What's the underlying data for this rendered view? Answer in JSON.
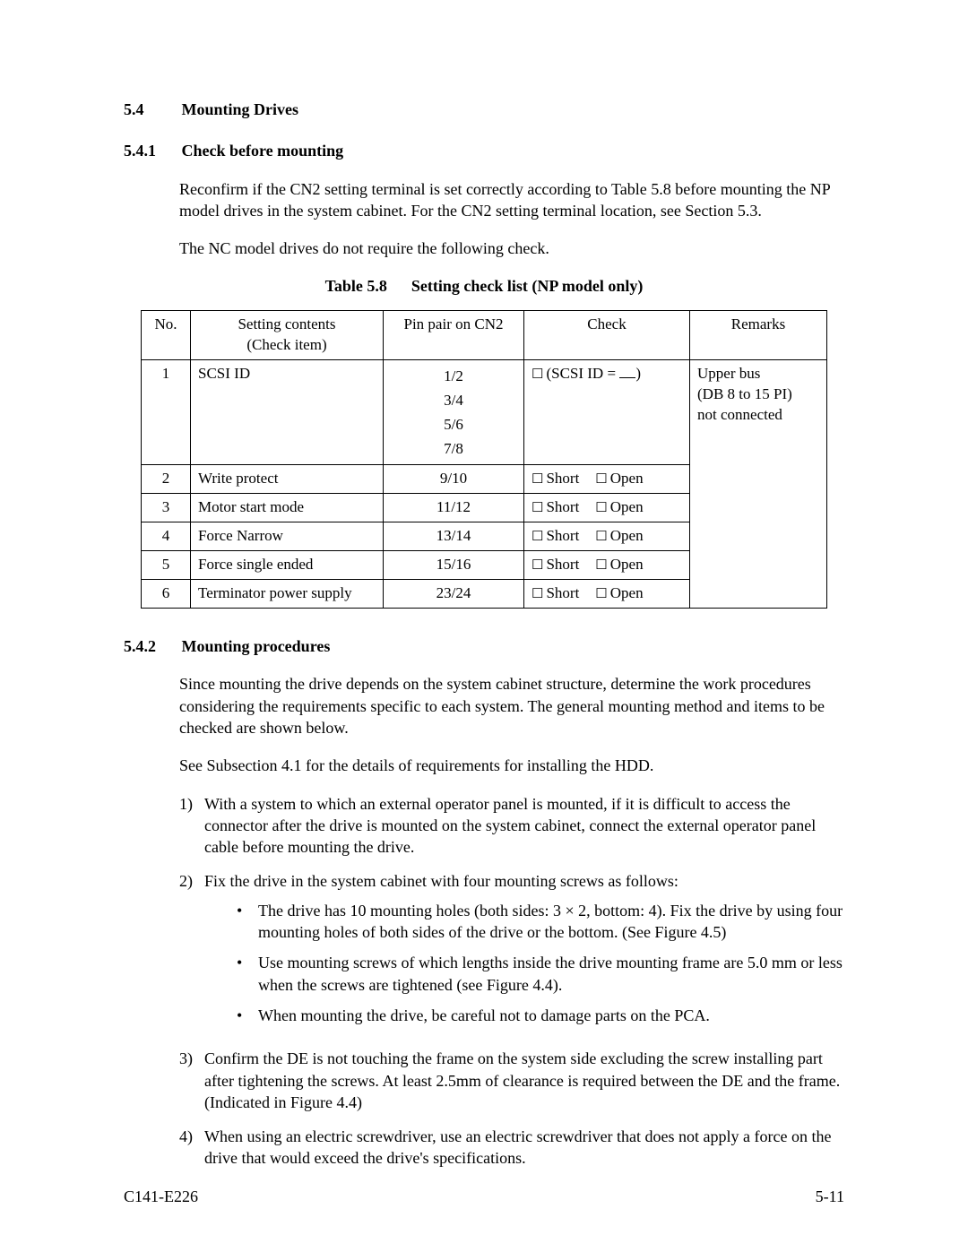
{
  "section": {
    "number": "5.4",
    "title": "Mounting Drives"
  },
  "sub1": {
    "number": "5.4.1",
    "title": "Check before mounting",
    "para1": "Reconfirm if the CN2 setting terminal is set correctly according to Table 5.8 before mounting the NP model drives in the system cabinet.  For the CN2 setting terminal location, see Section 5.3.",
    "para2": "The NC model drives do not require the following check."
  },
  "table": {
    "caption_label": "Table 5.8",
    "caption_title": "Setting check list (NP model only)",
    "headers": {
      "no": "No.",
      "item": "Setting contents\n(Check item)",
      "pin": "Pin pair on CN2",
      "check": "Check",
      "remarks": "Remarks"
    },
    "row1": {
      "no": "1",
      "item": "SCSI ID",
      "pins": [
        "1/2",
        "3/4",
        "5/6",
        "7/8"
      ],
      "check_prefix": "(SCSI ID =",
      "check_suffix": ")",
      "remarks": "Upper bus\n(DB 8 to 15 PI)\nnot connected"
    },
    "rows_simple": [
      {
        "no": "2",
        "item": "Write protect",
        "pin": "9/10"
      },
      {
        "no": "3",
        "item": "Motor start mode",
        "pin": "11/12"
      },
      {
        "no": "4",
        "item": "Force Narrow",
        "pin": "13/14"
      },
      {
        "no": "5",
        "item": "Force single ended",
        "pin": "15/16"
      },
      {
        "no": "6",
        "item": "Terminator power supply",
        "pin": "23/24"
      }
    ],
    "check_labels": {
      "short": "Short",
      "open": "Open"
    }
  },
  "sub2": {
    "number": "5.4.2",
    "title": "Mounting procedures",
    "para1": "Since mounting the drive depends on the system cabinet structure, determine the work procedures considering the requirements specific to each system.  The general mounting method and items to be checked are shown below.",
    "para2": "See Subsection 4.1 for the details of requirements for installing the HDD.",
    "items": {
      "i1": "With a system to which an external operator panel is mounted, if it is difficult to access the connector after the drive is mounted on the system cabinet, connect the external operator panel cable before mounting the drive.",
      "i2": "Fix the drive in the system cabinet with four mounting screws as follows:",
      "i2_bullets": [
        "The drive has 10 mounting holes (both sides:  3 × 2, bottom:  4).  Fix the drive by using four mounting holes of both sides of the drive or the bottom. (See Figure 4.5)",
        "Use mounting screws of which lengths inside the drive mounting frame are 5.0 mm or less when the screws are tightened (see Figure 4.4).",
        "When mounting the drive, be careful not to damage parts on the PCA."
      ],
      "i3": "Confirm the DE is not touching the frame on the system side excluding the screw installing part after tightening the screws. At least 2.5mm of clearance is required between the DE and the frame. (Indicated in Figure 4.4)",
      "i4": "When using an electric screwdriver, use an electric screwdriver that does not apply a force on the drive that would exceed the drive's specifications."
    },
    "nums": {
      "n1": "1)",
      "n2": "2)",
      "n3": "3)",
      "n4": "4)"
    }
  },
  "footer": {
    "left": "C141-E226",
    "right": "5-11"
  },
  "glyphs": {
    "checkbox": "☐"
  }
}
